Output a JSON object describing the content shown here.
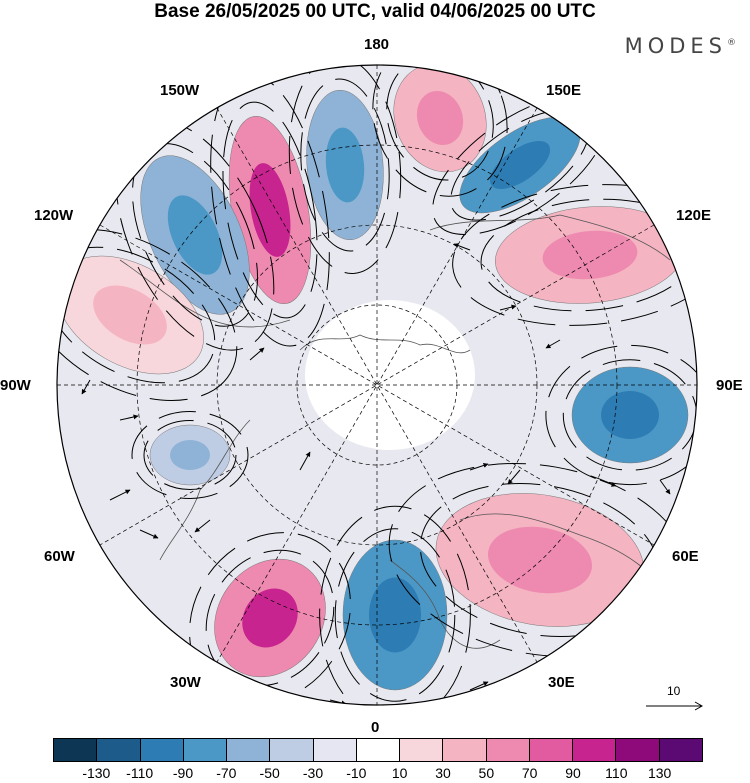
{
  "title": "Base 26/05/2025 00 UTC, valid 04/06/2025 00 UTC",
  "brand": "MODES",
  "brand_mark": "®",
  "longitude_labels": {
    "n180": "180",
    "e150": "150E",
    "e120": "120E",
    "e90": "90E",
    "e60": "60E",
    "e30": "30E",
    "zero": "0",
    "w30": "30W",
    "w60": "60W",
    "w90": "90W",
    "w120": "120W",
    "w150": "150W"
  },
  "vector_reference": "10",
  "colorbar": {
    "colors": [
      "#0d3655",
      "#1c5b8a",
      "#2d7db4",
      "#4b98c7",
      "#8fb3d6",
      "#bfcde4",
      "#e6e6f2",
      "#ffffff",
      "#f8d7dc",
      "#f4b4c2",
      "#ee8aaf",
      "#e25aa0",
      "#c8248f",
      "#8e0a7a",
      "#5b0a73"
    ],
    "tick_labels": [
      "-130",
      "-110",
      "-90",
      "-70",
      "-50",
      "-30",
      "-10",
      "10",
      "30",
      "50",
      "70",
      "90",
      "110",
      "130"
    ]
  },
  "anomalies": [
    {
      "name": "anomaly-positive-150e-north",
      "color": "#f4b4c2",
      "core": "#ee8aaf"
    },
    {
      "name": "anomaly-negative-150e",
      "color": "#4b98c7",
      "core": "#2d7db4"
    },
    {
      "name": "anomaly-positive-120e",
      "color": "#f4b4c2",
      "core": "#ee8aaf"
    },
    {
      "name": "anomaly-negative-90e",
      "color": "#4b98c7",
      "core": "#2d7db4"
    },
    {
      "name": "anomaly-positive-60e",
      "color": "#f4b4c2",
      "core": "#ee8aaf"
    },
    {
      "name": "anomaly-negative-0",
      "color": "#4b98c7",
      "core": "#2d7db4"
    },
    {
      "name": "anomaly-positive-30w",
      "color": "#ee8aaf",
      "core": "#c8248f"
    },
    {
      "name": "anomaly-positive-180w",
      "color": "#ee8aaf",
      "core": "#c8248f"
    },
    {
      "name": "anomaly-negative-160w",
      "color": "#8fb3d6",
      "core": "#4b98c7"
    },
    {
      "name": "anomaly-negative-130w",
      "color": "#8fb3d6",
      "core": "#4b98c7"
    },
    {
      "name": "anomaly-positive-100w",
      "color": "#f8d7dc",
      "core": "#f4b4c2"
    },
    {
      "name": "anomaly-negative-75w",
      "color": "#bfcde4",
      "core": "#8fb3d6"
    }
  ]
}
